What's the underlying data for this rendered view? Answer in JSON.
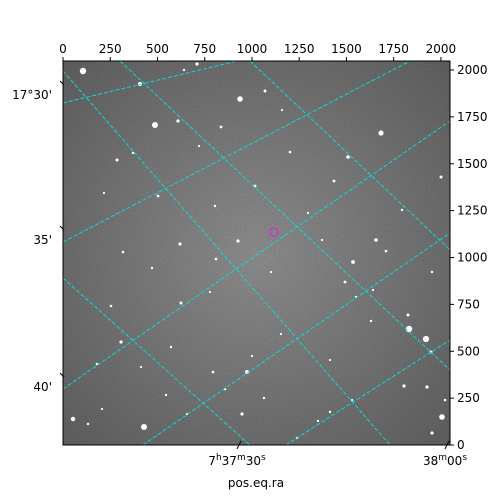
{
  "figure": {
    "xlabel": "pos.eq.ra",
    "top_ticks": [
      "0",
      "250",
      "500",
      "750",
      "1000",
      "1250",
      "1500",
      "1750",
      "2000"
    ],
    "right_ticks": [
      "0",
      "250",
      "500",
      "750",
      "1000",
      "1250",
      "1500",
      "1750",
      "2000"
    ],
    "dec_ticks": [
      "17°30'",
      "35'",
      "40'"
    ],
    "ra_ticks": [
      {
        "h": "7",
        "hs": "h",
        "m": "37",
        "ms": "m",
        "s": "30",
        "ss": "s"
      },
      {
        "h": "",
        "hs": "",
        "m": "38",
        "ms": "m",
        "s": "00",
        "ss": "s"
      }
    ],
    "colors": {
      "grid": "#00e5e5",
      "marker": "#cc33cc",
      "sky_background": "#7a7a7a"
    },
    "pixel_range": [
      0,
      2048
    ]
  }
}
